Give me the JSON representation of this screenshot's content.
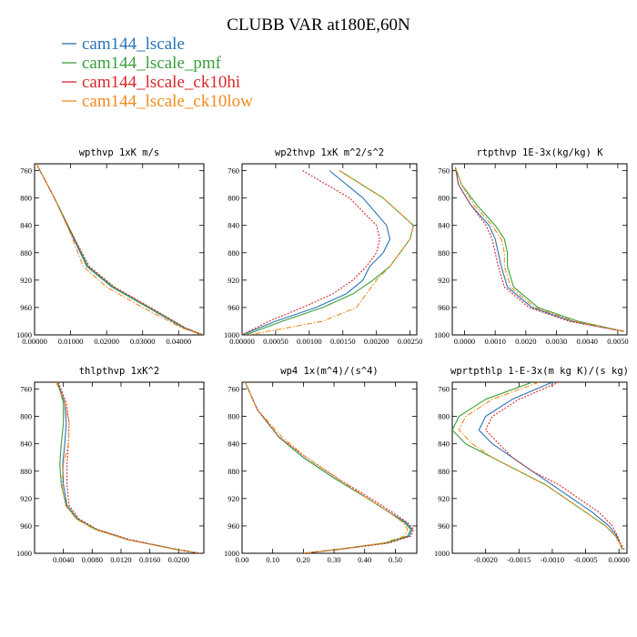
{
  "figure": {
    "title": "CLUBB VAR at180E,60N",
    "legend": [
      {
        "label": "cam144_lscale",
        "color": "#2a73b5",
        "dash": "solid"
      },
      {
        "label": "cam144_lscale_pmf",
        "color": "#3a9e3a",
        "dash": "solid"
      },
      {
        "label": "cam144_lscale_ck10hi",
        "color": "#d9262b",
        "dash": "dotted"
      },
      {
        "label": "cam144_lscale_ck10low",
        "color": "#f28c1e",
        "dash": "dashdot"
      }
    ]
  },
  "chart_data": [
    {
      "type": "line",
      "title": "wpthvp  1xK m/s",
      "xlim": [
        0,
        0.047
      ],
      "ylim": [
        1000,
        750
      ],
      "xticks": [
        0.0,
        0.01,
        0.02,
        0.03,
        0.04
      ],
      "xticklabels": [
        "0.00000",
        "0.01000",
        "0.02000",
        "0.03000",
        "0.04000"
      ],
      "yticks": [
        760,
        800,
        840,
        880,
        920,
        960,
        1000
      ],
      "y": [
        750,
        800,
        850,
        900,
        930,
        960,
        990,
        1000
      ],
      "series": [
        {
          "name": "cam144_lscale",
          "x": [
            0.0005,
            0.0055,
            0.01,
            0.0145,
            0.0215,
            0.0315,
            0.0415,
            0.0465
          ]
        },
        {
          "name": "cam144_lscale_pmf",
          "x": [
            0.0005,
            0.0055,
            0.0102,
            0.0148,
            0.0218,
            0.0318,
            0.0418,
            0.0468
          ]
        },
        {
          "name": "cam144_lscale_ck10hi",
          "x": [
            0.0005,
            0.0055,
            0.0101,
            0.0152,
            0.0222,
            0.0322,
            0.042,
            0.0468
          ]
        },
        {
          "name": "cam144_lscale_ck10low",
          "x": [
            0.0005,
            0.0055,
            0.0098,
            0.0135,
            0.02,
            0.03,
            0.041,
            0.0465
          ]
        }
      ]
    },
    {
      "type": "line",
      "title": "wp2thvp  1xK m^2/s^2",
      "xlim": [
        0,
        0.0026
      ],
      "ylim": [
        1000,
        750
      ],
      "xticks": [
        0.0,
        0.0005,
        0.001,
        0.0015,
        0.002,
        0.0025
      ],
      "xticklabels": [
        "0.00000",
        "0.00050",
        "0.00100",
        "0.00150",
        "0.00200",
        "0.00250"
      ],
      "yticks": [
        760,
        800,
        840,
        880,
        920,
        960,
        1000
      ],
      "y": [
        760,
        800,
        840,
        860,
        880,
        900,
        920,
        940,
        960,
        980,
        1000
      ],
      "series": [
        {
          "name": "cam144_lscale",
          "x": [
            0.0013,
            0.0018,
            0.00215,
            0.0022,
            0.0021,
            0.0019,
            0.0018,
            0.00155,
            0.0011,
            0.0005,
            0.0
          ]
        },
        {
          "name": "cam144_lscale_pmf",
          "x": [
            0.00145,
            0.0021,
            0.00255,
            0.0025,
            0.00235,
            0.0022,
            0.00195,
            0.00165,
            0.0012,
            0.0006,
            5e-05
          ]
        },
        {
          "name": "cam144_lscale_ck10hi",
          "x": [
            0.0009,
            0.0016,
            0.002,
            0.00205,
            0.002,
            0.00185,
            0.00165,
            0.00135,
            0.0009,
            0.0004,
            0.0
          ]
        },
        {
          "name": "cam144_lscale_ck10low",
          "x": [
            0.00145,
            0.0021,
            0.00255,
            0.0025,
            0.00235,
            0.0022,
            0.002,
            0.00185,
            0.0017,
            0.0012,
            0.0001
          ]
        }
      ]
    },
    {
      "type": "line",
      "title": "rtpthvp  1E-3x(kg/kg) K",
      "xlim": [
        -0.0004,
        0.0053
      ],
      "ylim": [
        1000,
        750
      ],
      "xticks": [
        0.0,
        0.001,
        0.002,
        0.003,
        0.004,
        0.005
      ],
      "xticklabels": [
        "0.0000",
        "0.0010",
        "0.0020",
        "0.0030",
        "0.0040",
        "0.0050"
      ],
      "yticks": [
        760,
        800,
        840,
        880,
        920,
        960,
        1000
      ],
      "y": [
        755,
        780,
        810,
        840,
        860,
        880,
        900,
        930,
        960,
        980,
        995
      ],
      "series": [
        {
          "name": "cam144_lscale",
          "x": [
            -0.0003,
            -0.0002,
            0.0002,
            0.0008,
            0.001,
            0.0011,
            0.0012,
            0.0014,
            0.0022,
            0.0035,
            0.0052
          ]
        },
        {
          "name": "cam144_lscale_pmf",
          "x": [
            -0.0003,
            -0.0001,
            0.0004,
            0.001,
            0.0013,
            0.0014,
            0.0014,
            0.0016,
            0.0024,
            0.0037,
            0.0052
          ]
        },
        {
          "name": "cam144_lscale_ck10hi",
          "x": [
            -0.0003,
            -0.0002,
            0.0002,
            0.0007,
            0.0009,
            0.001,
            0.0011,
            0.0013,
            0.0021,
            0.0034,
            0.0052
          ]
        },
        {
          "name": "cam144_lscale_ck10low",
          "x": [
            -0.0003,
            -0.0001,
            0.0003,
            0.0009,
            0.0012,
            0.0013,
            0.0013,
            0.0015,
            0.0023,
            0.0036,
            0.0052
          ]
        }
      ]
    },
    {
      "type": "line",
      "title": "thlpthvp  1xK^2",
      "xlim": [
        0,
        0.0235
      ],
      "ylim": [
        1000,
        750
      ],
      "xticks": [
        0.004,
        0.008,
        0.012,
        0.016,
        0.02
      ],
      "xticklabels": [
        "0.0040",
        "0.0080",
        "0.0120",
        "0.0160",
        "0.0200"
      ],
      "yticks": [
        760,
        800,
        840,
        880,
        920,
        960,
        1000
      ],
      "y": [
        750,
        780,
        810,
        840,
        870,
        900,
        930,
        950,
        965,
        980,
        995,
        1000
      ],
      "series": [
        {
          "name": "cam144_lscale",
          "x": [
            0.0032,
            0.0042,
            0.0044,
            0.0042,
            0.0039,
            0.004,
            0.0045,
            0.006,
            0.0085,
            0.013,
            0.02,
            0.023
          ]
        },
        {
          "name": "cam144_lscale_pmf",
          "x": [
            0.0032,
            0.004,
            0.004,
            0.0037,
            0.0035,
            0.0037,
            0.0044,
            0.0059,
            0.0085,
            0.013,
            0.02,
            0.023
          ]
        },
        {
          "name": "cam144_lscale_ck10hi",
          "x": [
            0.0033,
            0.0044,
            0.0048,
            0.0047,
            0.0045,
            0.0045,
            0.0048,
            0.0062,
            0.0087,
            0.0132,
            0.02,
            0.023
          ]
        },
        {
          "name": "cam144_lscale_ck10low",
          "x": [
            0.003,
            0.0042,
            0.0048,
            0.0047,
            0.004,
            0.0038,
            0.0043,
            0.0058,
            0.0083,
            0.0128,
            0.0198,
            0.023
          ]
        }
      ]
    },
    {
      "type": "line",
      "title": "wp4  1x(m^4)/(s^4)",
      "xlim": [
        0,
        0.57
      ],
      "ylim": [
        1000,
        750
      ],
      "xticks": [
        0.0,
        0.1,
        0.2,
        0.3,
        0.4,
        0.5
      ],
      "xticklabels": [
        "0.00",
        "0.10",
        "0.20",
        "0.30",
        "0.40",
        "0.50"
      ],
      "yticks": [
        760,
        800,
        840,
        880,
        920,
        960,
        1000
      ],
      "y": [
        750,
        790,
        830,
        860,
        890,
        920,
        940,
        955,
        965,
        975,
        985,
        995,
        1000
      ],
      "series": [
        {
          "name": "cam144_lscale",
          "x": [
            0.01,
            0.05,
            0.12,
            0.2,
            0.3,
            0.41,
            0.48,
            0.535,
            0.555,
            0.545,
            0.47,
            0.3,
            0.2
          ]
        },
        {
          "name": "cam144_lscale_pmf",
          "x": [
            0.01,
            0.05,
            0.12,
            0.2,
            0.3,
            0.41,
            0.48,
            0.53,
            0.55,
            0.54,
            0.47,
            0.3,
            0.2
          ]
        },
        {
          "name": "cam144_lscale_ck10hi",
          "x": [
            0.01,
            0.05,
            0.12,
            0.21,
            0.31,
            0.42,
            0.49,
            0.54,
            0.56,
            0.55,
            0.48,
            0.31,
            0.2
          ]
        },
        {
          "name": "cam144_lscale_ck10low",
          "x": [
            0.01,
            0.05,
            0.13,
            0.21,
            0.31,
            0.41,
            0.48,
            0.525,
            0.54,
            0.53,
            0.46,
            0.3,
            0.2
          ]
        }
      ]
    },
    {
      "type": "line",
      "title": "wprtpthlp  1-E-3x(m kg K)/(s kg)",
      "xlim": [
        -0.0025,
        0.00012
      ],
      "ylim": [
        1000,
        750
      ],
      "xticks": [
        -0.002,
        -0.0015,
        -0.001,
        -0.0005,
        0.0
      ],
      "xticklabels": [
        "-0.0020",
        "-0.0015",
        "-0.0010",
        "-0.0005",
        "0.0000"
      ],
      "yticks": [
        760,
        800,
        840,
        880,
        920,
        960,
        1000
      ],
      "y": [
        750,
        775,
        800,
        820,
        840,
        860,
        880,
        900,
        920,
        940,
        960,
        975,
        985,
        995
      ],
      "series": [
        {
          "name": "cam144_lscale",
          "x": [
            -0.001,
            -0.0016,
            -0.002,
            -0.0021,
            -0.0019,
            -0.0016,
            -0.0013,
            -0.001,
            -0.0007,
            -0.0004,
            -0.00015,
            -3e-05,
            1e-05,
            5e-05
          ]
        },
        {
          "name": "cam144_lscale_pmf",
          "x": [
            -0.0013,
            -0.002,
            -0.0024,
            -0.0025,
            -0.0023,
            -0.0019,
            -0.0015,
            -0.0011,
            -0.0008,
            -0.0005,
            -0.0002,
            -5e-05,
            1e-05,
            5e-05
          ]
        },
        {
          "name": "cam144_lscale_ck10hi",
          "x": [
            -0.0009,
            -0.0015,
            -0.0019,
            -0.002,
            -0.0018,
            -0.0016,
            -0.0013,
            -0.0009,
            -0.0006,
            -0.0003,
            -0.0001,
            -2e-05,
            2e-05,
            8e-05
          ]
        },
        {
          "name": "cam144_lscale_ck10low",
          "x": [
            -0.0012,
            -0.0019,
            -0.0023,
            -0.0024,
            -0.0022,
            -0.0019,
            -0.0015,
            -0.0011,
            -0.0008,
            -0.0005,
            -0.0002,
            -5e-05,
            1e-05,
            5e-05
          ]
        }
      ]
    }
  ]
}
